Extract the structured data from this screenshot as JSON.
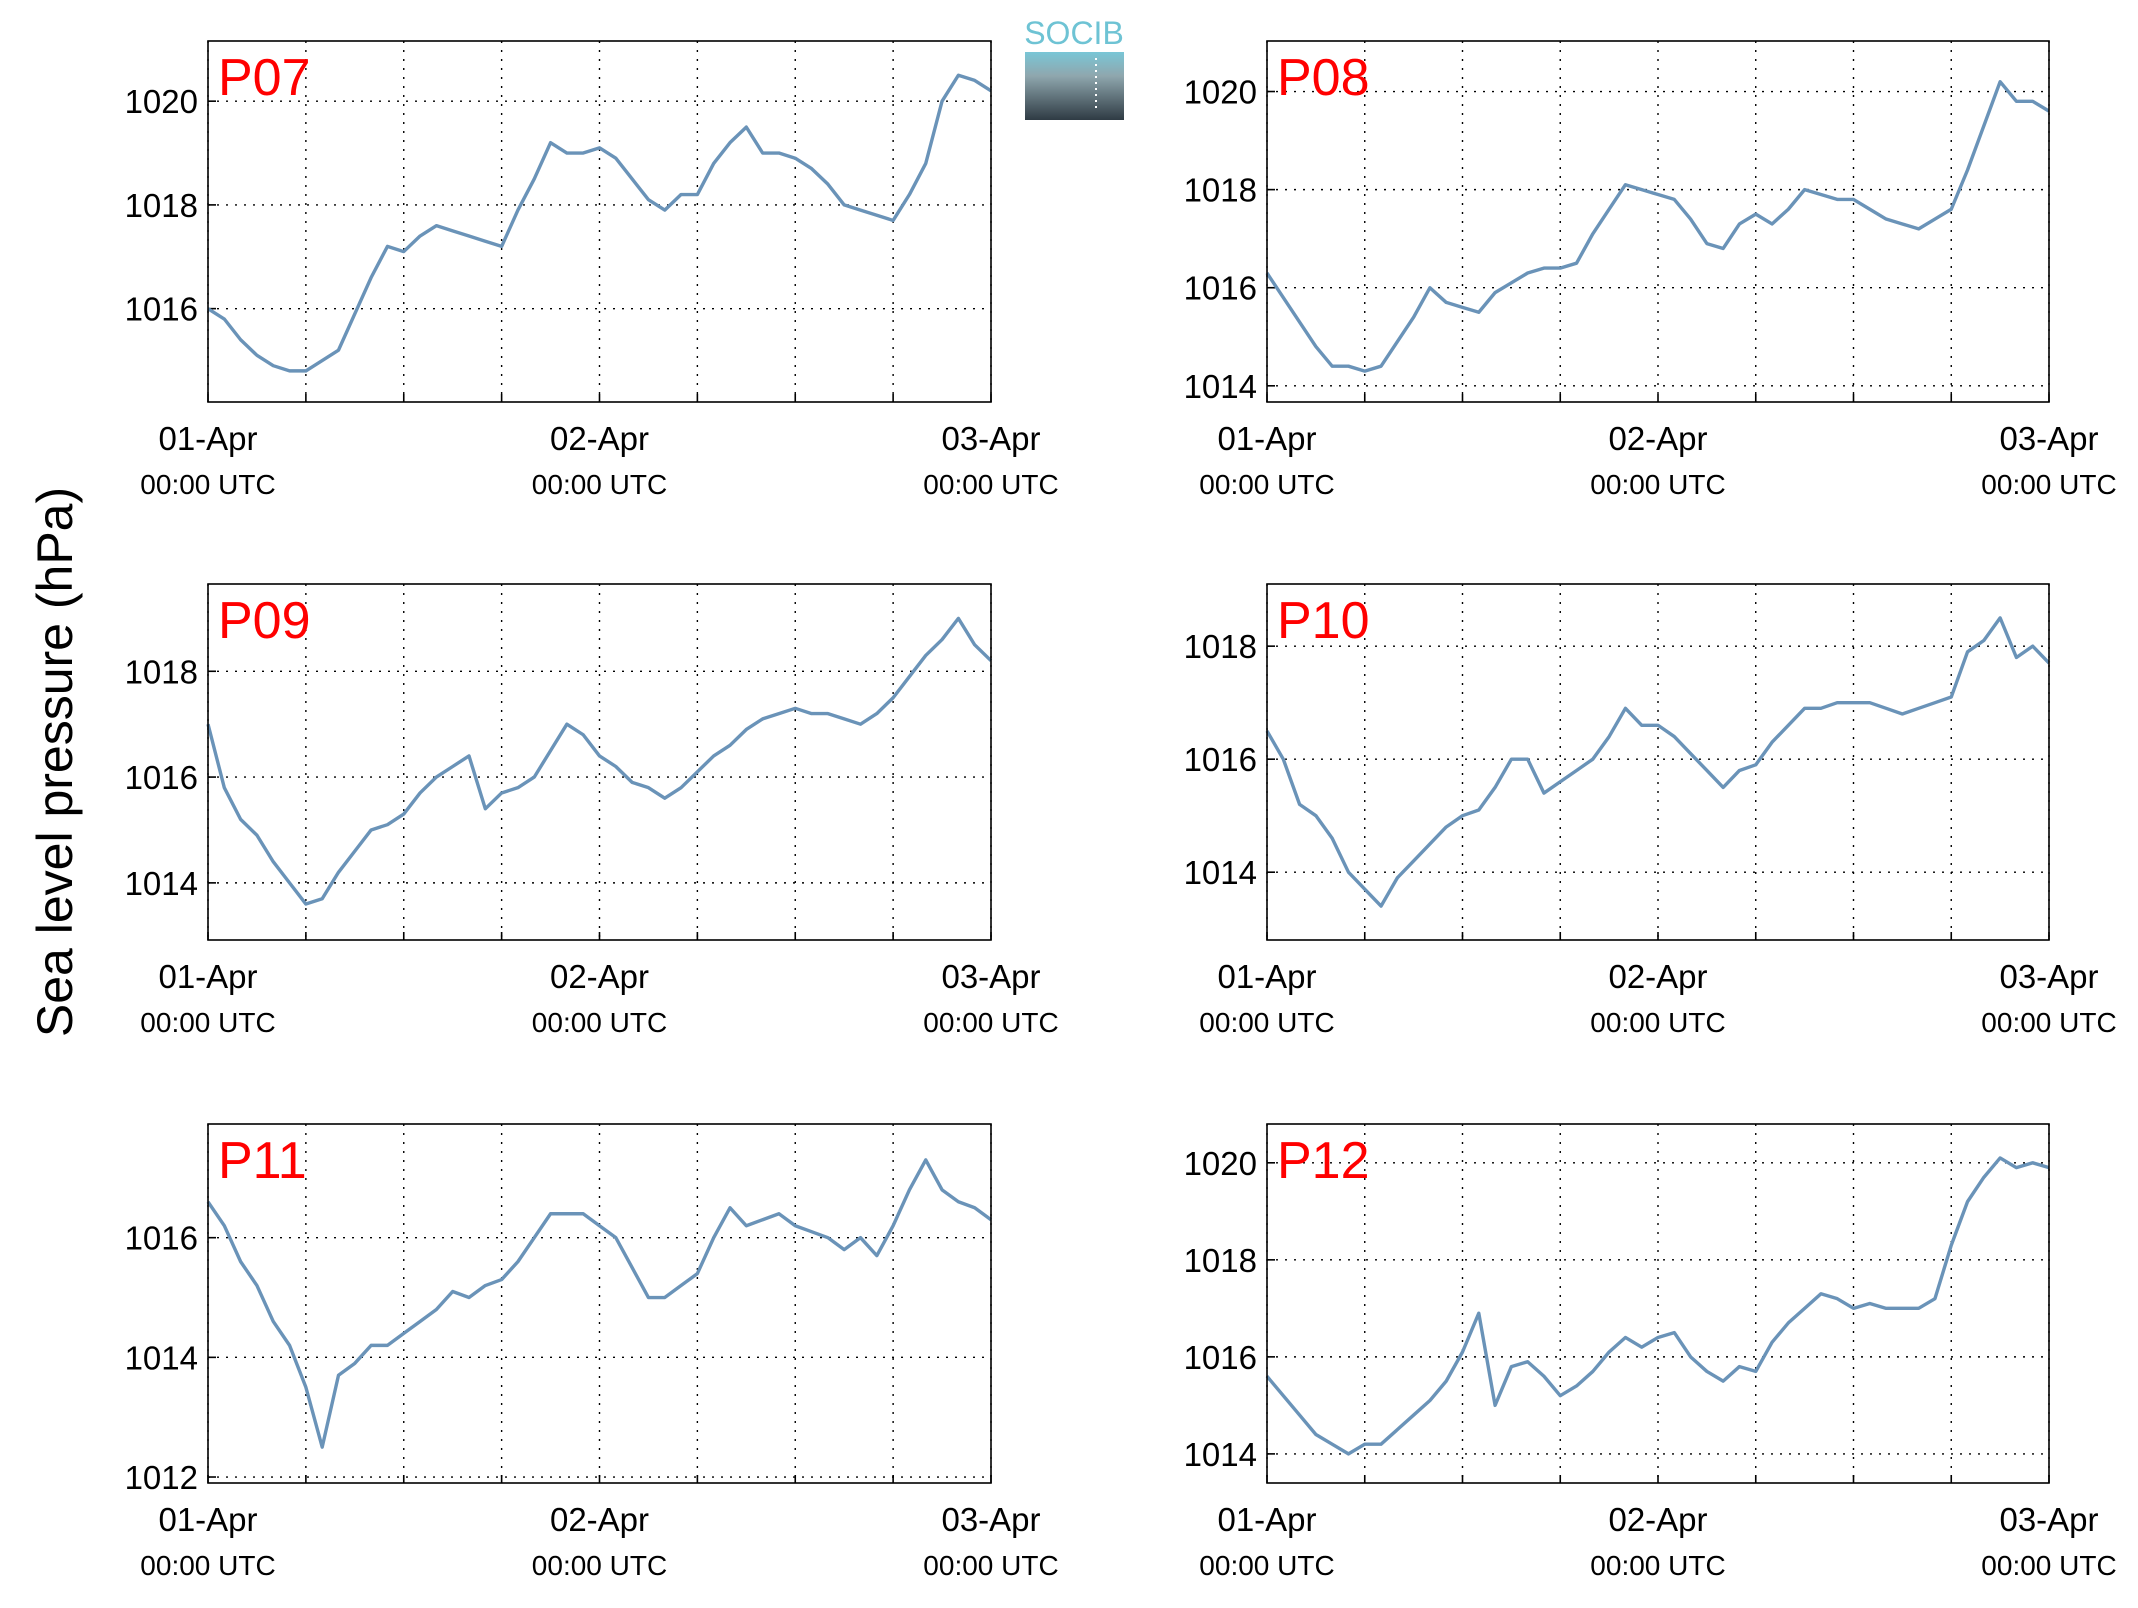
{
  "ylabel": "Sea level pressure (hPa)",
  "logo": "SOCIB",
  "chart_data": [
    {
      "type": "line",
      "title": "P07",
      "color": "#6a93b8",
      "x": [
        0,
        1,
        2,
        3,
        4,
        5,
        6,
        7,
        8,
        9,
        10,
        11,
        12,
        13,
        14,
        15,
        16,
        17,
        18,
        19,
        20,
        21,
        22,
        23,
        24,
        25,
        26,
        27,
        28,
        29,
        30,
        31,
        32,
        33,
        34,
        35,
        36,
        37,
        38,
        39,
        40,
        41,
        42,
        43,
        44,
        45,
        46,
        47,
        48
      ],
      "values": [
        1016.0,
        1015.8,
        1015.4,
        1015.1,
        1014.9,
        1014.8,
        1014.8,
        1015.0,
        1015.2,
        1015.9,
        1016.6,
        1017.2,
        1017.1,
        1017.4,
        1017.6,
        1017.5,
        1017.4,
        1017.3,
        1017.2,
        1017.9,
        1018.5,
        1019.2,
        1019.0,
        1019.0,
        1019.1,
        1018.9,
        1018.5,
        1018.1,
        1017.9,
        1018.2,
        1018.2,
        1018.8,
        1019.2,
        1019.5,
        1019.0,
        1019.0,
        1018.9,
        1018.7,
        1018.4,
        1018.0,
        1017.9,
        1017.8,
        1017.7,
        1018.2,
        1018.8,
        1020.0,
        1020.5,
        1020.4,
        1020.2
      ],
      "xlim": [
        0,
        48
      ],
      "xticks": [
        {
          "value": 0,
          "label": [
            "01-Apr",
            "00:00 UTC"
          ]
        },
        {
          "value": 6,
          "label": null
        },
        {
          "value": 12,
          "label": null
        },
        {
          "value": 18,
          "label": null
        },
        {
          "value": 24,
          "label": [
            "02-Apr",
            "00:00 UTC"
          ]
        },
        {
          "value": 30,
          "label": null
        },
        {
          "value": 36,
          "label": null
        },
        {
          "value": 42,
          "label": null
        },
        {
          "value": 48,
          "label": [
            "03-Apr",
            "00:00 UTC"
          ]
        }
      ],
      "ylim": [
        1014.2,
        1021.16
      ],
      "yticks": [
        1016,
        1018,
        1020
      ],
      "grid": true
    },
    {
      "type": "line",
      "title": "P08",
      "color": "#6a93b8",
      "x": [
        0,
        1,
        2,
        3,
        4,
        5,
        6,
        7,
        8,
        9,
        10,
        11,
        12,
        13,
        14,
        15,
        16,
        17,
        18,
        19,
        20,
        21,
        22,
        23,
        24,
        25,
        26,
        27,
        28,
        29,
        30,
        31,
        32,
        33,
        34,
        35,
        36,
        37,
        38,
        39,
        40,
        41,
        42,
        43,
        44,
        45,
        46,
        47,
        48
      ],
      "values": [
        1016.3,
        1015.8,
        1015.3,
        1014.8,
        1014.4,
        1014.4,
        1014.3,
        1014.4,
        1014.9,
        1015.4,
        1016.0,
        1015.7,
        1015.6,
        1015.5,
        1015.9,
        1016.1,
        1016.3,
        1016.4,
        1016.4,
        1016.5,
        1017.1,
        1017.6,
        1018.1,
        1018.0,
        1017.9,
        1017.8,
        1017.4,
        1016.9,
        1016.8,
        1017.3,
        1017.5,
        1017.3,
        1017.6,
        1018.0,
        1017.9,
        1017.8,
        1017.8,
        1017.6,
        1017.4,
        1017.3,
        1017.2,
        1017.4,
        1017.6,
        1018.4,
        1019.3,
        1020.2,
        1019.8,
        1019.8,
        1019.6
      ],
      "xlim": [
        0,
        48
      ],
      "xticks": [
        {
          "value": 0,
          "label": [
            "01-Apr",
            "00:00 UTC"
          ]
        },
        {
          "value": 6,
          "label": null
        },
        {
          "value": 12,
          "label": null
        },
        {
          "value": 18,
          "label": null
        },
        {
          "value": 24,
          "label": [
            "02-Apr",
            "00:00 UTC"
          ]
        },
        {
          "value": 30,
          "label": null
        },
        {
          "value": 36,
          "label": null
        },
        {
          "value": 42,
          "label": null
        },
        {
          "value": 48,
          "label": [
            "03-Apr",
            "00:00 UTC"
          ]
        }
      ],
      "ylim": [
        1013.67,
        1021.03
      ],
      "yticks": [
        1014,
        1016,
        1018,
        1020
      ],
      "grid": true
    },
    {
      "type": "line",
      "title": "P09",
      "color": "#6a93b8",
      "x": [
        0,
        1,
        2,
        3,
        4,
        5,
        6,
        7,
        8,
        9,
        10,
        11,
        12,
        13,
        14,
        15,
        16,
        17,
        18,
        19,
        20,
        21,
        22,
        23,
        24,
        25,
        26,
        27,
        28,
        29,
        30,
        31,
        32,
        33,
        34,
        35,
        36,
        37,
        38,
        39,
        40,
        41,
        42,
        43,
        44,
        45,
        46,
        47,
        48
      ],
      "values": [
        1017.0,
        1015.8,
        1015.2,
        1014.9,
        1014.4,
        1014.0,
        1013.6,
        1013.7,
        1014.2,
        1014.6,
        1015.0,
        1015.1,
        1015.3,
        1015.7,
        1016.0,
        1016.2,
        1016.4,
        1015.4,
        1015.7,
        1015.8,
        1016.0,
        1016.5,
        1017.0,
        1016.8,
        1016.4,
        1016.2,
        1015.9,
        1015.8,
        1015.6,
        1015.8,
        1016.1,
        1016.4,
        1016.6,
        1016.9,
        1017.1,
        1017.2,
        1017.3,
        1017.2,
        1017.2,
        1017.1,
        1017.0,
        1017.2,
        1017.5,
        1017.9,
        1018.3,
        1018.6,
        1019.0,
        1018.5,
        1018.2
      ],
      "xlim": [
        0,
        48
      ],
      "xticks": [
        {
          "value": 0,
          "label": [
            "01-Apr",
            "00:00 UTC"
          ]
        },
        {
          "value": 6,
          "label": null
        },
        {
          "value": 12,
          "label": null
        },
        {
          "value": 18,
          "label": null
        },
        {
          "value": 24,
          "label": [
            "02-Apr",
            "00:00 UTC"
          ]
        },
        {
          "value": 30,
          "label": null
        },
        {
          "value": 36,
          "label": null
        },
        {
          "value": 42,
          "label": null
        },
        {
          "value": 48,
          "label": [
            "03-Apr",
            "00:00 UTC"
          ]
        }
      ],
      "ylim": [
        1012.92,
        1019.65
      ],
      "yticks": [
        1014,
        1016,
        1018
      ],
      "grid": true
    },
    {
      "type": "line",
      "title": "P10",
      "color": "#6a93b8",
      "x": [
        0,
        1,
        2,
        3,
        4,
        5,
        6,
        7,
        8,
        9,
        10,
        11,
        12,
        13,
        14,
        15,
        16,
        17,
        18,
        19,
        20,
        21,
        22,
        23,
        24,
        25,
        26,
        27,
        28,
        29,
        30,
        31,
        32,
        33,
        34,
        35,
        36,
        37,
        38,
        39,
        40,
        41,
        42,
        43,
        44,
        45,
        46,
        47,
        48
      ],
      "values": [
        1016.5,
        1016.0,
        1015.2,
        1015.0,
        1014.6,
        1014.0,
        1013.7,
        1013.4,
        1013.9,
        1014.2,
        1014.5,
        1014.8,
        1015.0,
        1015.1,
        1015.5,
        1016.0,
        1016.0,
        1015.4,
        1015.6,
        1015.8,
        1016.0,
        1016.4,
        1016.9,
        1016.6,
        1016.6,
        1016.4,
        1016.1,
        1015.8,
        1015.5,
        1015.8,
        1015.9,
        1016.3,
        1016.6,
        1016.9,
        1016.9,
        1017.0,
        1017.0,
        1017.0,
        1016.9,
        1016.8,
        1016.9,
        1017.0,
        1017.1,
        1017.9,
        1018.1,
        1018.5,
        1017.8,
        1018.0,
        1017.7
      ],
      "xlim": [
        0,
        48
      ],
      "xticks": [
        {
          "value": 0,
          "label": [
            "01-Apr",
            "00:00 UTC"
          ]
        },
        {
          "value": 6,
          "label": null
        },
        {
          "value": 12,
          "label": null
        },
        {
          "value": 18,
          "label": null
        },
        {
          "value": 24,
          "label": [
            "02-Apr",
            "00:00 UTC"
          ]
        },
        {
          "value": 30,
          "label": null
        },
        {
          "value": 36,
          "label": null
        },
        {
          "value": 42,
          "label": null
        },
        {
          "value": 48,
          "label": [
            "03-Apr",
            "00:00 UTC"
          ]
        }
      ],
      "ylim": [
        1012.8,
        1019.1
      ],
      "yticks": [
        1014,
        1016,
        1018
      ],
      "grid": true
    },
    {
      "type": "line",
      "title": "P11",
      "color": "#6a93b8",
      "x": [
        0,
        1,
        2,
        3,
        4,
        5,
        6,
        7,
        8,
        9,
        10,
        11,
        12,
        13,
        14,
        15,
        16,
        17,
        18,
        19,
        20,
        21,
        22,
        23,
        24,
        25,
        26,
        27,
        28,
        29,
        30,
        31,
        32,
        33,
        34,
        35,
        36,
        37,
        38,
        39,
        40,
        41,
        42,
        43,
        44,
        45,
        46,
        47,
        48
      ],
      "values": [
        1016.6,
        1016.2,
        1015.6,
        1015.2,
        1014.6,
        1014.2,
        1013.5,
        1012.5,
        1013.7,
        1013.9,
        1014.2,
        1014.2,
        1014.4,
        1014.6,
        1014.8,
        1015.1,
        1015.0,
        1015.2,
        1015.3,
        1015.6,
        1016.0,
        1016.4,
        1016.4,
        1016.4,
        1016.2,
        1016.0,
        1015.5,
        1015.0,
        1015.0,
        1015.2,
        1015.4,
        1016.0,
        1016.5,
        1016.2,
        1016.3,
        1016.4,
        1016.2,
        1016.1,
        1016.0,
        1015.8,
        1016.0,
        1015.7,
        1016.2,
        1016.8,
        1017.3,
        1016.8,
        1016.6,
        1016.5,
        1016.3
      ],
      "xlim": [
        0,
        48
      ],
      "xticks": [
        {
          "value": 0,
          "label": [
            "01-Apr",
            "00:00 UTC"
          ]
        },
        {
          "value": 6,
          "label": null
        },
        {
          "value": 12,
          "label": null
        },
        {
          "value": 18,
          "label": null
        },
        {
          "value": 24,
          "label": [
            "02-Apr",
            "00:00 UTC"
          ]
        },
        {
          "value": 30,
          "label": null
        },
        {
          "value": 36,
          "label": null
        },
        {
          "value": 42,
          "label": null
        },
        {
          "value": 48,
          "label": [
            "03-Apr",
            "00:00 UTC"
          ]
        }
      ],
      "ylim": [
        1011.9,
        1017.9
      ],
      "yticks": [
        1012,
        1014,
        1016
      ],
      "grid": true
    },
    {
      "type": "line",
      "title": "P12",
      "color": "#6a93b8",
      "x": [
        0,
        1,
        2,
        3,
        4,
        5,
        6,
        7,
        8,
        9,
        10,
        11,
        12,
        13,
        14,
        15,
        16,
        17,
        18,
        19,
        20,
        21,
        22,
        23,
        24,
        25,
        26,
        27,
        28,
        29,
        30,
        31,
        32,
        33,
        34,
        35,
        36,
        37,
        38,
        39,
        40,
        41,
        42,
        43,
        44,
        45,
        46,
        47,
        48
      ],
      "values": [
        1015.6,
        1015.2,
        1014.8,
        1014.4,
        1014.2,
        1014.0,
        1014.2,
        1014.2,
        1014.5,
        1014.8,
        1015.1,
        1015.5,
        1016.1,
        1016.9,
        1015.0,
        1015.8,
        1015.9,
        1015.6,
        1015.2,
        1015.4,
        1015.7,
        1016.1,
        1016.4,
        1016.2,
        1016.4,
        1016.5,
        1016.0,
        1015.7,
        1015.5,
        1015.8,
        1015.7,
        1016.3,
        1016.7,
        1017.0,
        1017.3,
        1017.2,
        1017.0,
        1017.1,
        1017.0,
        1017.0,
        1017.0,
        1017.2,
        1018.3,
        1019.2,
        1019.7,
        1020.1,
        1019.9,
        1020.0,
        1019.9
      ],
      "xlim": [
        0,
        48
      ],
      "xticks": [
        {
          "value": 0,
          "label": [
            "01-Apr",
            "00:00 UTC"
          ]
        },
        {
          "value": 6,
          "label": null
        },
        {
          "value": 12,
          "label": null
        },
        {
          "value": 18,
          "label": null
        },
        {
          "value": 24,
          "label": [
            "02-Apr",
            "00:00 UTC"
          ]
        },
        {
          "value": 30,
          "label": null
        },
        {
          "value": 36,
          "label": null
        },
        {
          "value": 42,
          "label": null
        },
        {
          "value": 48,
          "label": [
            "03-Apr",
            "00:00 UTC"
          ]
        }
      ],
      "ylim": [
        1013.4,
        1020.8
      ],
      "yticks": [
        1014,
        1016,
        1018,
        1020
      ],
      "grid": true
    }
  ]
}
